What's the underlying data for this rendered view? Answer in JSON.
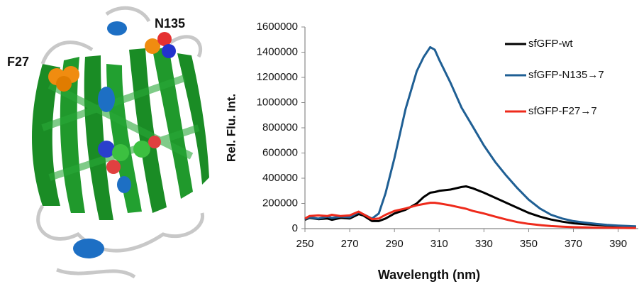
{
  "structure": {
    "labels": [
      "F27",
      "N135"
    ]
  },
  "chart_data": {
    "type": "line",
    "x_label": "Wavelength (nm)",
    "y_label": "Rel. Flu. Int.",
    "x": [
      250,
      252,
      256,
      260,
      262,
      266,
      270,
      274,
      276,
      280,
      283,
      286,
      290,
      295,
      300,
      303,
      306,
      308,
      310,
      315,
      320,
      322,
      325,
      330,
      335,
      340,
      345,
      350,
      355,
      360,
      365,
      370,
      375,
      380,
      385,
      390,
      395,
      398
    ],
    "series": [
      {
        "name": "sfGFP-wt",
        "color": "#000000",
        "values": [
          70000,
          85000,
          75000,
          80000,
          70000,
          85000,
          80000,
          115000,
          105000,
          60000,
          60000,
          80000,
          120000,
          150000,
          200000,
          250000,
          285000,
          290000,
          300000,
          310000,
          330000,
          335000,
          320000,
          285000,
          245000,
          205000,
          165000,
          125000,
          95000,
          72000,
          55000,
          42000,
          35000,
          30000,
          25000,
          20000,
          16000,
          15000
        ]
      },
      {
        "name": "sfGFP-N135→7",
        "color": "#1f5f94",
        "values": [
          75000,
          90000,
          80000,
          95000,
          85000,
          95000,
          90000,
          130000,
          115000,
          80000,
          120000,
          280000,
          560000,
          950000,
          1250000,
          1360000,
          1440000,
          1420000,
          1340000,
          1160000,
          960000,
          900000,
          810000,
          660000,
          530000,
          420000,
          320000,
          230000,
          160000,
          110000,
          80000,
          60000,
          48000,
          38000,
          30000,
          24000,
          20000,
          18000
        ]
      },
      {
        "name": "sfGFP-F27→7",
        "color": "#ee2a1b",
        "values": [
          80000,
          100000,
          105000,
          100000,
          110000,
          100000,
          105000,
          135000,
          115000,
          75000,
          80000,
          110000,
          140000,
          160000,
          185000,
          195000,
          205000,
          205000,
          200000,
          185000,
          165000,
          158000,
          140000,
          120000,
          95000,
          72000,
          52000,
          38000,
          28000,
          20000,
          15000,
          12000,
          10000,
          8000,
          7000,
          6000,
          5000,
          5000
        ]
      }
    ],
    "xlim": [
      250,
      399
    ],
    "xticks": [
      250,
      270,
      290,
      310,
      330,
      350,
      370,
      390
    ],
    "ylim": [
      0,
      1600000
    ],
    "yticks": [
      0,
      200000,
      400000,
      600000,
      800000,
      1000000,
      1200000,
      1400000,
      1600000
    ],
    "grid": false,
    "legend": "upper right"
  }
}
